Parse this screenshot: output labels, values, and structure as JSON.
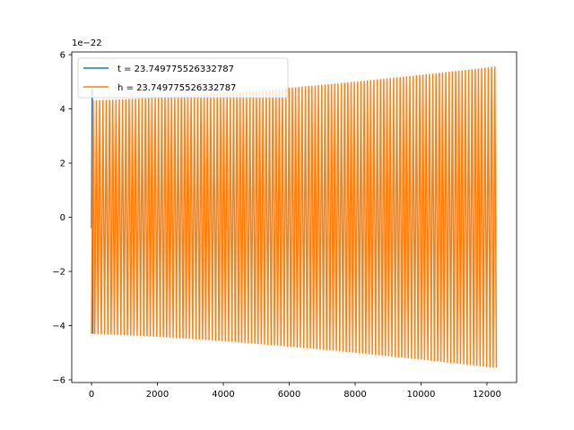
{
  "chart_data": {
    "type": "line",
    "title": "",
    "xlabel": "",
    "ylabel": "",
    "y_offset_label": "1e−22",
    "xlim": [
      -600,
      12900
    ],
    "ylim": [
      -6.1,
      6.1
    ],
    "x_ticks": [
      0,
      2000,
      4000,
      6000,
      8000,
      10000,
      12000
    ],
    "x_tick_labels": [
      "0",
      "2000",
      "4000",
      "6000",
      "8000",
      "10000",
      "12000"
    ],
    "y_ticks": [
      -6,
      -4,
      -2,
      0,
      2,
      4,
      6
    ],
    "y_tick_labels": [
      "−6",
      "−4",
      "−2",
      "0",
      "2",
      "4",
      "6"
    ],
    "grid": false,
    "legend_position": "upper-left",
    "x_max": 12288,
    "cycles": 124,
    "amplitude_start": 4.3,
    "amplitude_end": 5.55,
    "series": [
      {
        "name": "t = 23.749775526332787",
        "color": "#1f77b4",
        "visible_spike": {
          "x": 20,
          "y_min": -0.4,
          "y_max": 4.75
        }
      },
      {
        "name": "h = 23.749775526332787",
        "color": "#ff7f0e",
        "envelope": {
          "start": 4.3,
          "end": 5.55
        }
      }
    ]
  }
}
